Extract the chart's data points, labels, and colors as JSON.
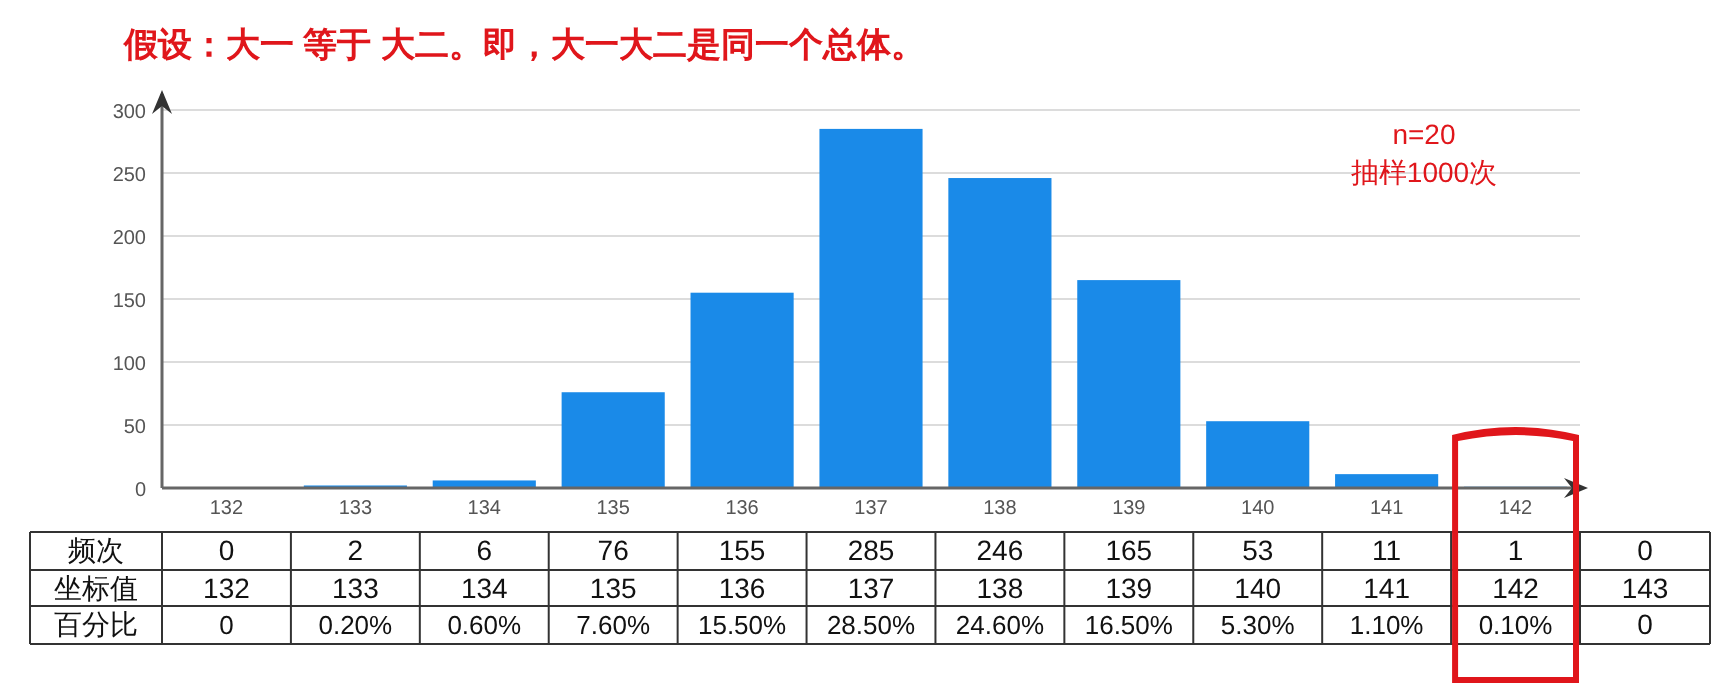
{
  "chart_data": {
    "type": "bar",
    "title": "假设：大一 等于 大二。即，大一大二是同一个总体。",
    "categories": [
      "132",
      "133",
      "134",
      "135",
      "136",
      "137",
      "138",
      "139",
      "140",
      "141",
      "142"
    ],
    "values": [
      0,
      2,
      6,
      76,
      155,
      285,
      246,
      165,
      53,
      11,
      1
    ],
    "color": "#1a8ae8",
    "ylim": [
      0,
      300
    ],
    "yticks": [
      0,
      50,
      100,
      150,
      200,
      250,
      300
    ],
    "grid": "y",
    "data_labels": true,
    "annotations": [
      "n=20",
      "抽样1000次",
      "频次",
      "坐标值",
      "百分比",
      "0",
      "143",
      "0",
      "0",
      "0.20%",
      "0.60%",
      "7.60%",
      "15.50%",
      "28.50%",
      "24.60%",
      "16.50%",
      "5.30%",
      "1.10%",
      "0.10%"
    ]
  }
}
